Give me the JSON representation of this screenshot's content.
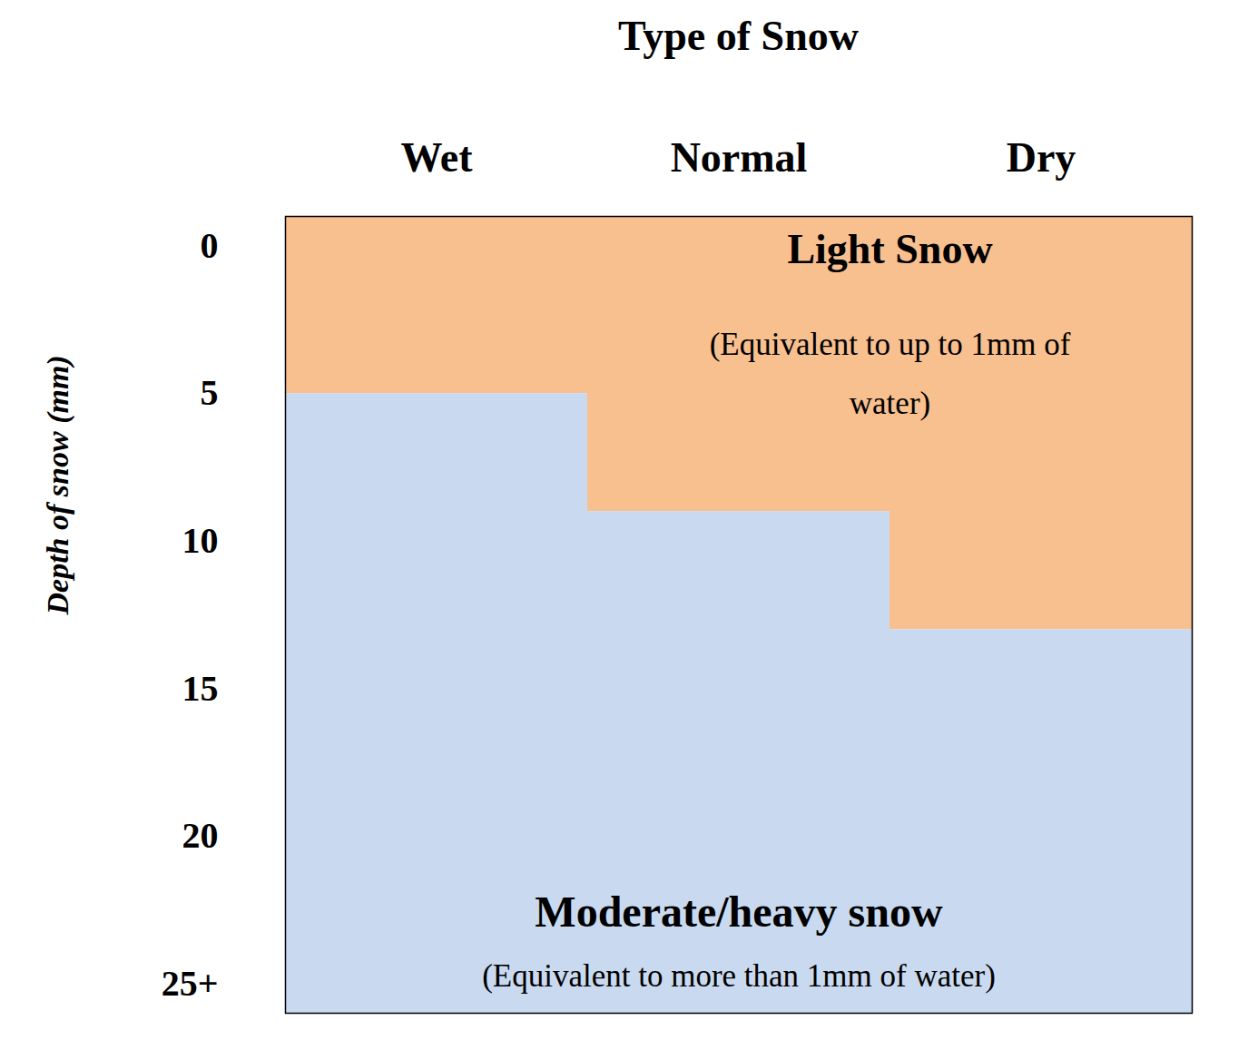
{
  "chart_data": {
    "type": "area",
    "title": "Type of Snow",
    "y_label": "Depth of snow (mm)",
    "categories": [
      "Wet",
      "Normal",
      "Dry"
    ],
    "values": [
      5,
      9,
      13
    ],
    "ylim": [
      -1,
      26
    ],
    "yticks": [
      0,
      5,
      10,
      15,
      20,
      {
        "value": 25,
        "label": "25+"
      }
    ],
    "series": [
      {
        "name": "Light Snow",
        "annotation": "(Equivalent to up to 1mm of water)",
        "color": "#f8bf8f"
      },
      {
        "name": "Moderate/heavy snow",
        "annotation": "(Equivalent to more than 1mm of water)",
        "color": "#c9daf0"
      }
    ]
  }
}
